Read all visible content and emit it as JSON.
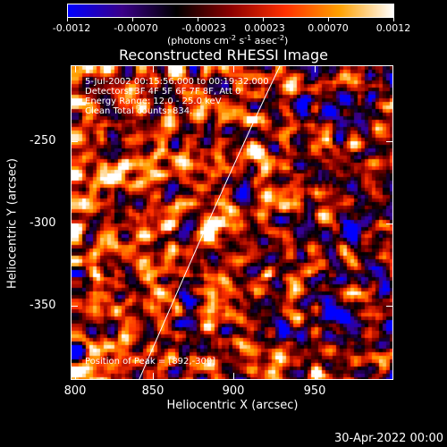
{
  "colorbar": {
    "tick_labels": [
      "-0.0012",
      "-0.00070",
      "-0.00023",
      "0.00023",
      "0.00070",
      "0.0012"
    ],
    "units_prefix": "(photons cm",
    "units_exp1": "-2",
    "units_mid1": " s",
    "units_exp2": "-1",
    "units_mid2": " asec",
    "units_exp3": "-2",
    "units_suffix": ")",
    "colors": [
      "#0000ff",
      "#3a0088",
      "#000000",
      "#8b0000",
      "#ff3000",
      "#ffa000",
      "#ffffff"
    ]
  },
  "title": "Reconstructed RHESSI Image",
  "info_lines": [
    "5-Jul-2002 00:15:56.000 to 00:19:32.000",
    "Detectors: 3F 4F 5F 6F 7F 8F, Att 0",
    "Energy Range: 12.0 - 25.0 keV",
    "Clean    Total counts: 834."
  ],
  "peak_text": "Position of Peak = [892,-300]",
  "x_axis": {
    "title": "Heliocentric X (arcsec)",
    "tick_labels": [
      "800",
      "850",
      "900",
      "950"
    ]
  },
  "y_axis": {
    "title": "Heliocentric Y (arcsec)",
    "tick_labels": [
      "-250",
      "-300",
      "-350"
    ]
  },
  "datestamp": "30-Apr-2022 00:00",
  "chart_data": {
    "type": "heatmap",
    "title": "Reconstructed RHESSI Image",
    "xlabel": "Heliocentric X (arcsec)",
    "ylabel": "Heliocentric Y (arcsec)",
    "xlim": [
      797,
      990
    ],
    "ylim": [
      -395,
      -207
    ],
    "zlim": [
      -0.0012,
      0.0012
    ],
    "peak": [
      892,
      -300
    ]
  }
}
